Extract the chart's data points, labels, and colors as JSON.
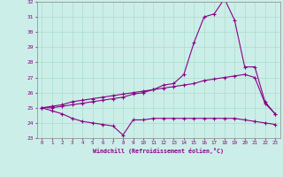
{
  "xlabel": "Windchill (Refroidissement éolien,°C)",
  "background_color": "#cceee8",
  "grid_color": "#aaddcc",
  "line_color": "#880088",
  "x": [
    0,
    1,
    2,
    3,
    4,
    5,
    6,
    7,
    8,
    9,
    10,
    11,
    12,
    13,
    14,
    15,
    16,
    17,
    18,
    19,
    20,
    21,
    22,
    23
  ],
  "line1": [
    25.0,
    24.8,
    24.6,
    24.3,
    24.1,
    24.0,
    23.9,
    23.8,
    23.2,
    24.2,
    24.2,
    24.3,
    24.3,
    24.3,
    24.3,
    24.3,
    24.3,
    24.3,
    24.3,
    24.3,
    24.2,
    24.1,
    24.0,
    23.9
  ],
  "line2": [
    25.0,
    25.1,
    25.2,
    25.4,
    25.5,
    25.6,
    25.7,
    25.8,
    25.9,
    26.0,
    26.1,
    26.2,
    26.3,
    26.4,
    26.5,
    26.6,
    26.8,
    26.9,
    27.0,
    27.1,
    27.2,
    27.0,
    25.3,
    24.6
  ],
  "line3": [
    25.0,
    25.0,
    25.1,
    25.2,
    25.3,
    25.4,
    25.5,
    25.6,
    25.7,
    25.9,
    26.0,
    26.2,
    26.5,
    26.6,
    27.2,
    29.3,
    31.0,
    31.2,
    32.2,
    30.8,
    27.7,
    27.7,
    25.4,
    24.6
  ],
  "ylim": [
    23,
    32
  ],
  "yticks": [
    23,
    24,
    25,
    26,
    27,
    28,
    29,
    30,
    31,
    32
  ],
  "xlim": [
    -0.5,
    23.5
  ]
}
